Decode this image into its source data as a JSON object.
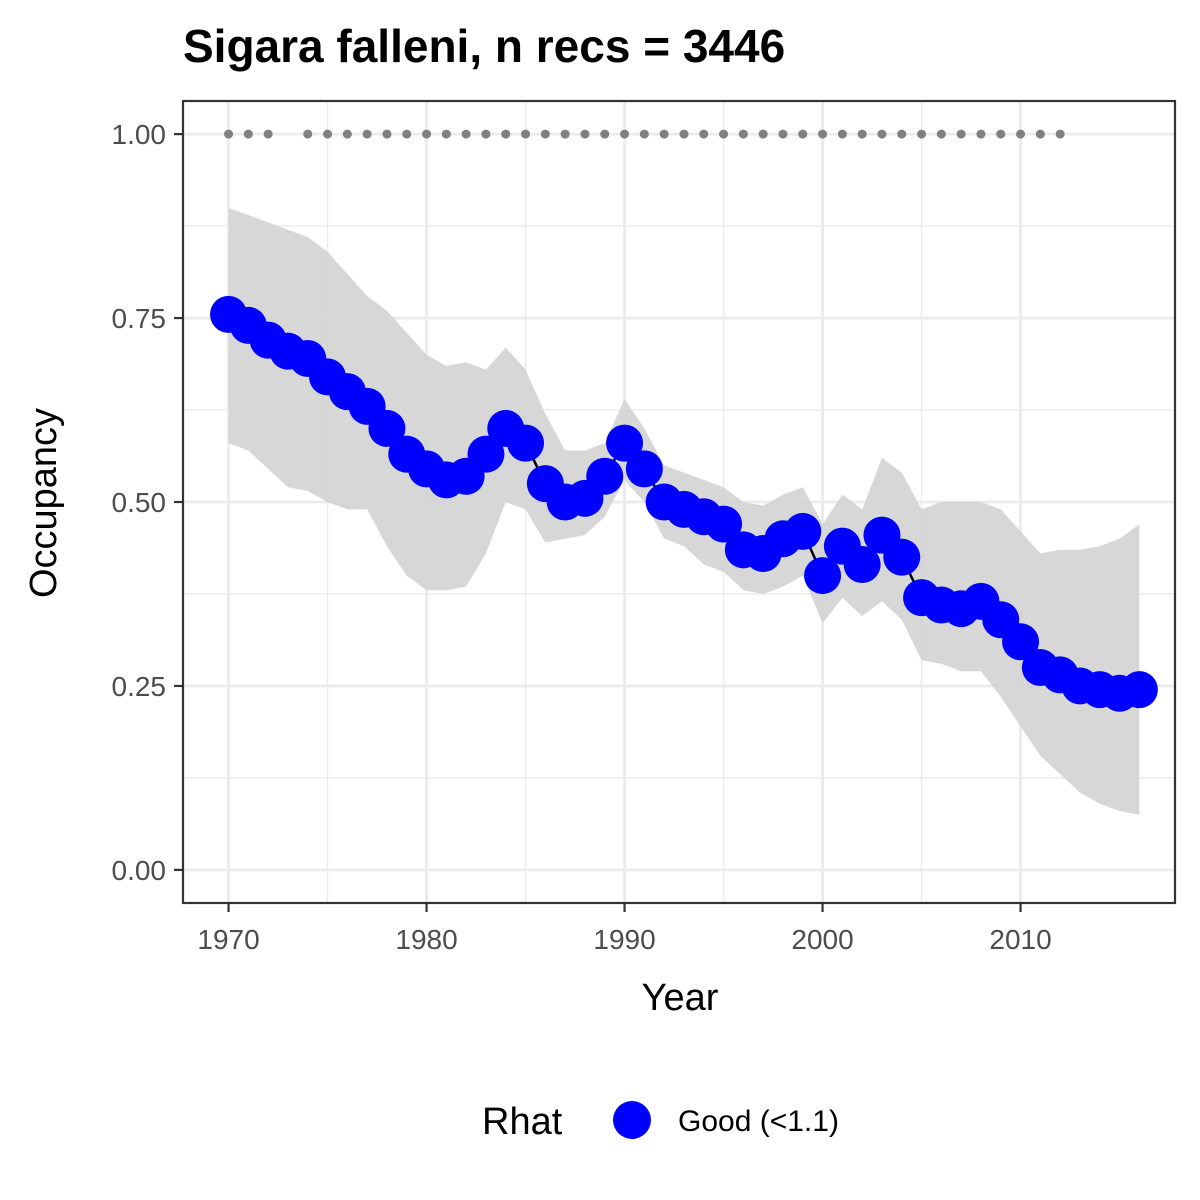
{
  "chart_data": {
    "type": "line",
    "title": "Sigara falleni, n recs = 3446",
    "xlabel": "Year",
    "ylabel": "Occupancy",
    "xlim": [
      1967.7,
      2017.8
    ],
    "ylim": [
      -0.045,
      1.045
    ],
    "x_ticks": [
      1970,
      1980,
      1990,
      2000,
      2010
    ],
    "x_tick_labels": [
      "1970",
      "1980",
      "1990",
      "2000",
      "2010"
    ],
    "y_ticks": [
      0,
      0.25,
      0.5,
      0.75,
      1.0
    ],
    "y_tick_labels": [
      "0.00",
      "0.25",
      "0.50",
      "0.75",
      "1.00"
    ],
    "grid": true,
    "legend": {
      "title": "Rhat",
      "position": "bottom",
      "entries": [
        {
          "label": "Good (<1.1)",
          "color": "#0000ff"
        }
      ]
    },
    "colors": {
      "points": "#0000ff",
      "line": "#000000",
      "ribbon": "#d3d3d3",
      "record_years": "#808080",
      "panel_border": "#333333",
      "grid": "#ebebeb"
    },
    "x": [
      1970,
      1971,
      1972,
      1973,
      1974,
      1975,
      1976,
      1977,
      1978,
      1979,
      1980,
      1981,
      1982,
      1983,
      1984,
      1985,
      1986,
      1987,
      1988,
      1989,
      1990,
      1991,
      1992,
      1993,
      1994,
      1995,
      1996,
      1997,
      1998,
      1999,
      2000,
      2001,
      2002,
      2003,
      2004,
      2005,
      2006,
      2007,
      2008,
      2009,
      2010,
      2011,
      2012,
      2013,
      2014,
      2015,
      2016
    ],
    "series": [
      {
        "name": "Good (<1.1)",
        "values": [
          0.755,
          0.74,
          0.72,
          0.705,
          0.695,
          0.67,
          0.65,
          0.63,
          0.6,
          0.565,
          0.545,
          0.53,
          0.535,
          0.565,
          0.6,
          0.58,
          0.525,
          0.5,
          0.505,
          0.535,
          0.58,
          0.545,
          0.5,
          0.49,
          0.48,
          0.47,
          0.435,
          0.43,
          0.45,
          0.46,
          0.4,
          0.44,
          0.415,
          0.455,
          0.425,
          0.37,
          0.36,
          0.355,
          0.365,
          0.34,
          0.31,
          0.275,
          0.265,
          0.25,
          0.245,
          0.24,
          0.245
        ],
        "upper": [
          0.9,
          0.89,
          0.88,
          0.87,
          0.86,
          0.84,
          0.81,
          0.78,
          0.76,
          0.73,
          0.7,
          0.685,
          0.69,
          0.68,
          0.71,
          0.68,
          0.62,
          0.57,
          0.57,
          0.58,
          0.64,
          0.6,
          0.55,
          0.54,
          0.53,
          0.52,
          0.5,
          0.495,
          0.51,
          0.52,
          0.47,
          0.51,
          0.49,
          0.56,
          0.54,
          0.49,
          0.5,
          0.5,
          0.5,
          0.49,
          0.46,
          0.43,
          0.435,
          0.435,
          0.44,
          0.45,
          0.47
        ],
        "lower": [
          0.58,
          0.57,
          0.545,
          0.52,
          0.515,
          0.5,
          0.49,
          0.49,
          0.44,
          0.4,
          0.38,
          0.38,
          0.385,
          0.43,
          0.5,
          0.49,
          0.445,
          0.45,
          0.455,
          0.48,
          0.53,
          0.5,
          0.45,
          0.44,
          0.415,
          0.405,
          0.38,
          0.375,
          0.385,
          0.4,
          0.335,
          0.37,
          0.345,
          0.365,
          0.34,
          0.285,
          0.28,
          0.27,
          0.27,
          0.235,
          0.195,
          0.155,
          0.13,
          0.105,
          0.09,
          0.08,
          0.075
        ]
      }
    ],
    "record_years": [
      1970,
      1971,
      1972,
      1974,
      1975,
      1976,
      1977,
      1978,
      1979,
      1980,
      1981,
      1982,
      1983,
      1984,
      1985,
      1986,
      1987,
      1988,
      1989,
      1990,
      1991,
      1992,
      1993,
      1994,
      1995,
      1996,
      1997,
      1998,
      1999,
      2000,
      2001,
      2002,
      2003,
      2004,
      2005,
      2006,
      2007,
      2008,
      2009,
      2010,
      2011,
      2012
    ],
    "record_level": 1.0
  }
}
